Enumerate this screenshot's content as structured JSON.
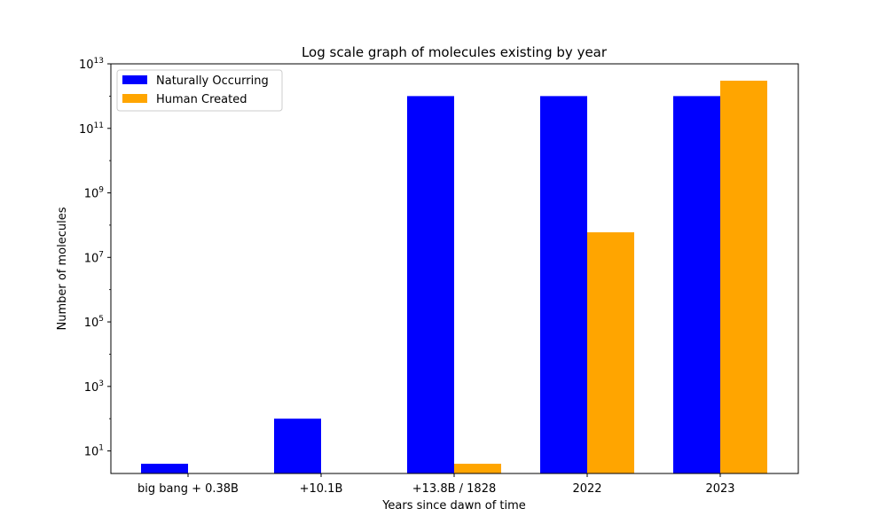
{
  "chart_data": {
    "type": "bar",
    "title": "Log scale graph of molecules existing by year",
    "xlabel": "Years since dawn of time",
    "ylabel": "Number of molecules",
    "yscale": "log",
    "ylim": [
      2,
      10000000000000
    ],
    "yticks": [
      {
        "value": 10,
        "base": "10",
        "exp": "1"
      },
      {
        "value": 1000,
        "base": "10",
        "exp": "3"
      },
      {
        "value": 100000,
        "base": "10",
        "exp": "5"
      },
      {
        "value": 10000000,
        "base": "10",
        "exp": "7"
      },
      {
        "value": 1000000000,
        "base": "10",
        "exp": "9"
      },
      {
        "value": 100000000000,
        "base": "10",
        "exp": "11"
      },
      {
        "value": 10000000000000,
        "base": "10",
        "exp": "13"
      }
    ],
    "categories": [
      "big bang + 0.38B",
      "+10.1B",
      "+13.8B / 1828",
      "2022",
      "2023"
    ],
    "series": [
      {
        "name": "Naturally Occurring",
        "color": "#0000ff",
        "values": [
          4,
          100,
          1000000000000,
          1000000000000,
          1000000000000
        ]
      },
      {
        "name": "Human Created",
        "color": "#ffa500",
        "values": [
          null,
          null,
          4,
          60000000,
          3000000000000
        ]
      }
    ],
    "legend": "top-left",
    "grid": false
  }
}
